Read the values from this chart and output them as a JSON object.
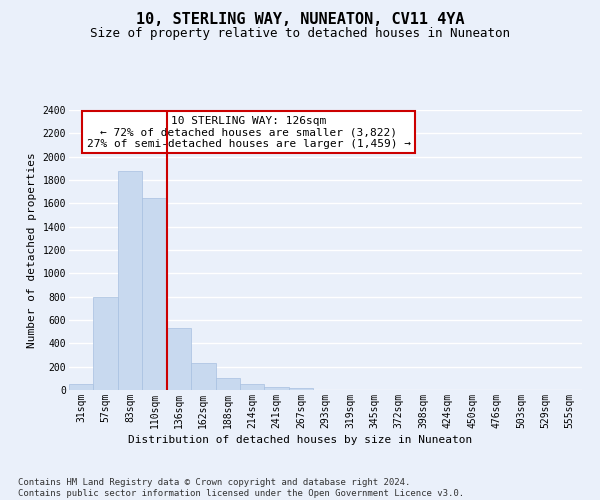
{
  "title": "10, STERLING WAY, NUNEATON, CV11 4YA",
  "subtitle": "Size of property relative to detached houses in Nuneaton",
  "xlabel": "Distribution of detached houses by size in Nuneaton",
  "ylabel": "Number of detached properties",
  "bar_color": "#c8d9ef",
  "bar_edgecolor": "#a8c0e0",
  "categories": [
    "31sqm",
    "57sqm",
    "83sqm",
    "110sqm",
    "136sqm",
    "162sqm",
    "188sqm",
    "214sqm",
    "241sqm",
    "267sqm",
    "293sqm",
    "319sqm",
    "345sqm",
    "372sqm",
    "398sqm",
    "424sqm",
    "450sqm",
    "476sqm",
    "503sqm",
    "529sqm",
    "555sqm"
  ],
  "values": [
    50,
    800,
    1880,
    1650,
    530,
    235,
    105,
    55,
    30,
    20,
    0,
    0,
    0,
    0,
    0,
    0,
    0,
    0,
    0,
    0,
    0
  ],
  "red_line_x": 3.5,
  "annotation_text": "10 STERLING WAY: 126sqm\n← 72% of detached houses are smaller (3,822)\n27% of semi-detached houses are larger (1,459) →",
  "ylim": [
    0,
    2400
  ],
  "yticks": [
    0,
    200,
    400,
    600,
    800,
    1000,
    1200,
    1400,
    1600,
    1800,
    2000,
    2200,
    2400
  ],
  "footer": "Contains HM Land Registry data © Crown copyright and database right 2024.\nContains public sector information licensed under the Open Government Licence v3.0.",
  "background_color": "#eaf0fa",
  "plot_bg_color": "#eaf0fa",
  "grid_color": "#ffffff",
  "annotation_box_facecolor": "#ffffff",
  "annotation_box_edgecolor": "#cc0000",
  "red_line_color": "#cc0000",
  "title_fontsize": 11,
  "subtitle_fontsize": 9,
  "ylabel_fontsize": 8,
  "xlabel_fontsize": 8,
  "tick_fontsize": 7,
  "footer_fontsize": 6.5,
  "annotation_fontsize": 8
}
